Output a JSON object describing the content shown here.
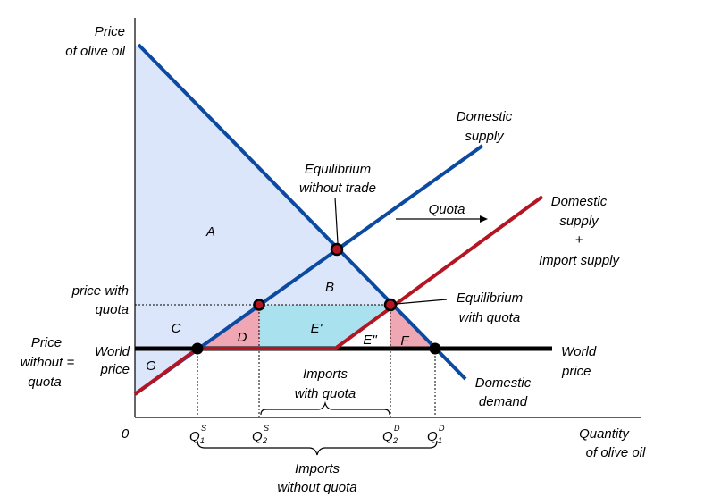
{
  "colors": {
    "demand": "#0b4aa0",
    "supply": "#0b4aa0",
    "supply_plus_imports": "#b51522",
    "world_price": "#000000",
    "consumer_surplus_fill": "#dce6fb",
    "deadweight_fill": "#f0a7b4",
    "quota_rent_fill": "#a9e1ef"
  },
  "axis": {
    "y_title_line1": "Price",
    "y_title_line2": "of olive oil",
    "x_title_line1": "Quantity",
    "x_title_line2": "of olive oil",
    "origin": "0"
  },
  "price_labels": {
    "with_quota_line1": "price with",
    "with_quota_line2": "quota",
    "without_line1": "Price",
    "without_line2": "without =",
    "without_line3": "quota",
    "world_line1": "World",
    "world_line2": "price"
  },
  "curve_labels": {
    "domestic_supply_line1": "Domestic",
    "domestic_supply_line2": "supply",
    "domestic_demand_line1": "Domestic",
    "domestic_demand_line2": "demand",
    "supply_import_line1": "Domestic",
    "supply_import_line2": "supply",
    "supply_import_line3": "+",
    "supply_import_line4": "Import supply",
    "world_price_line1": "World",
    "world_price_line2": "price",
    "quota": "Quota"
  },
  "annotations": {
    "eq_no_trade_line1": "Equilibrium",
    "eq_no_trade_line2": "without trade",
    "eq_quota_line1": "Equilibrium",
    "eq_quota_line2": "with quota",
    "imports_with_line1": "Imports",
    "imports_with_line2": "with quota",
    "imports_without_line1": "Imports",
    "imports_without_line2": "without quota"
  },
  "areas": {
    "a": "A",
    "b": "B",
    "c": "C",
    "d": "D",
    "e1": "E'",
    "e2": "E\"",
    "f": "F",
    "g": "G"
  },
  "quantities": {
    "q1s": "Q",
    "q1s_sup": "S",
    "q1s_sub": "1",
    "q2s": "Q",
    "q2s_sup": "S",
    "q2s_sub": "2",
    "q2d": "Q",
    "q2d_sup": "D",
    "q2d_sub": "2",
    "q1d": "Q",
    "q1d_sup": "D",
    "q1d_sub": "1"
  }
}
